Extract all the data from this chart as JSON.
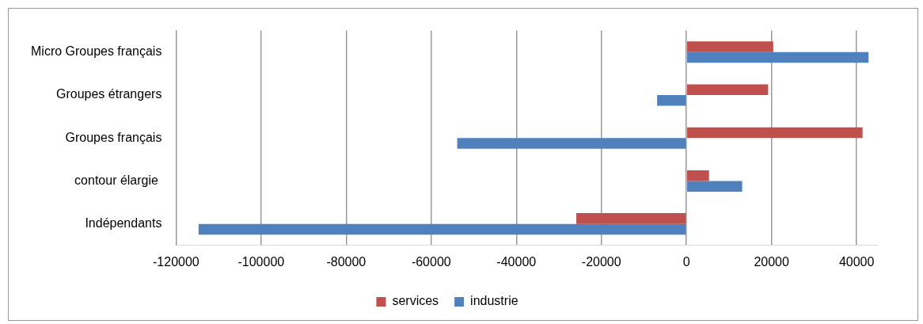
{
  "chart_data": {
    "type": "bar",
    "orientation": "horizontal",
    "categories": [
      "Micro Groupes français",
      "Groupes étrangers",
      "Groupes français",
      "contour élargie ",
      "Indépendants"
    ],
    "series": [
      {
        "name": "services",
        "color": "#c0504d",
        "values": [
          20400,
          19200,
          41400,
          5300,
          -25900
        ]
      },
      {
        "name": "industrie",
        "color": "#4f81bd",
        "values": [
          42800,
          -6900,
          -53900,
          13100,
          -114700
        ]
      }
    ],
    "xlim": [
      -120000,
      45000
    ],
    "xticks": [
      -120000,
      -100000,
      -80000,
      -60000,
      -40000,
      -20000,
      0,
      20000,
      40000
    ],
    "grid": "x",
    "legend": "bottom"
  }
}
